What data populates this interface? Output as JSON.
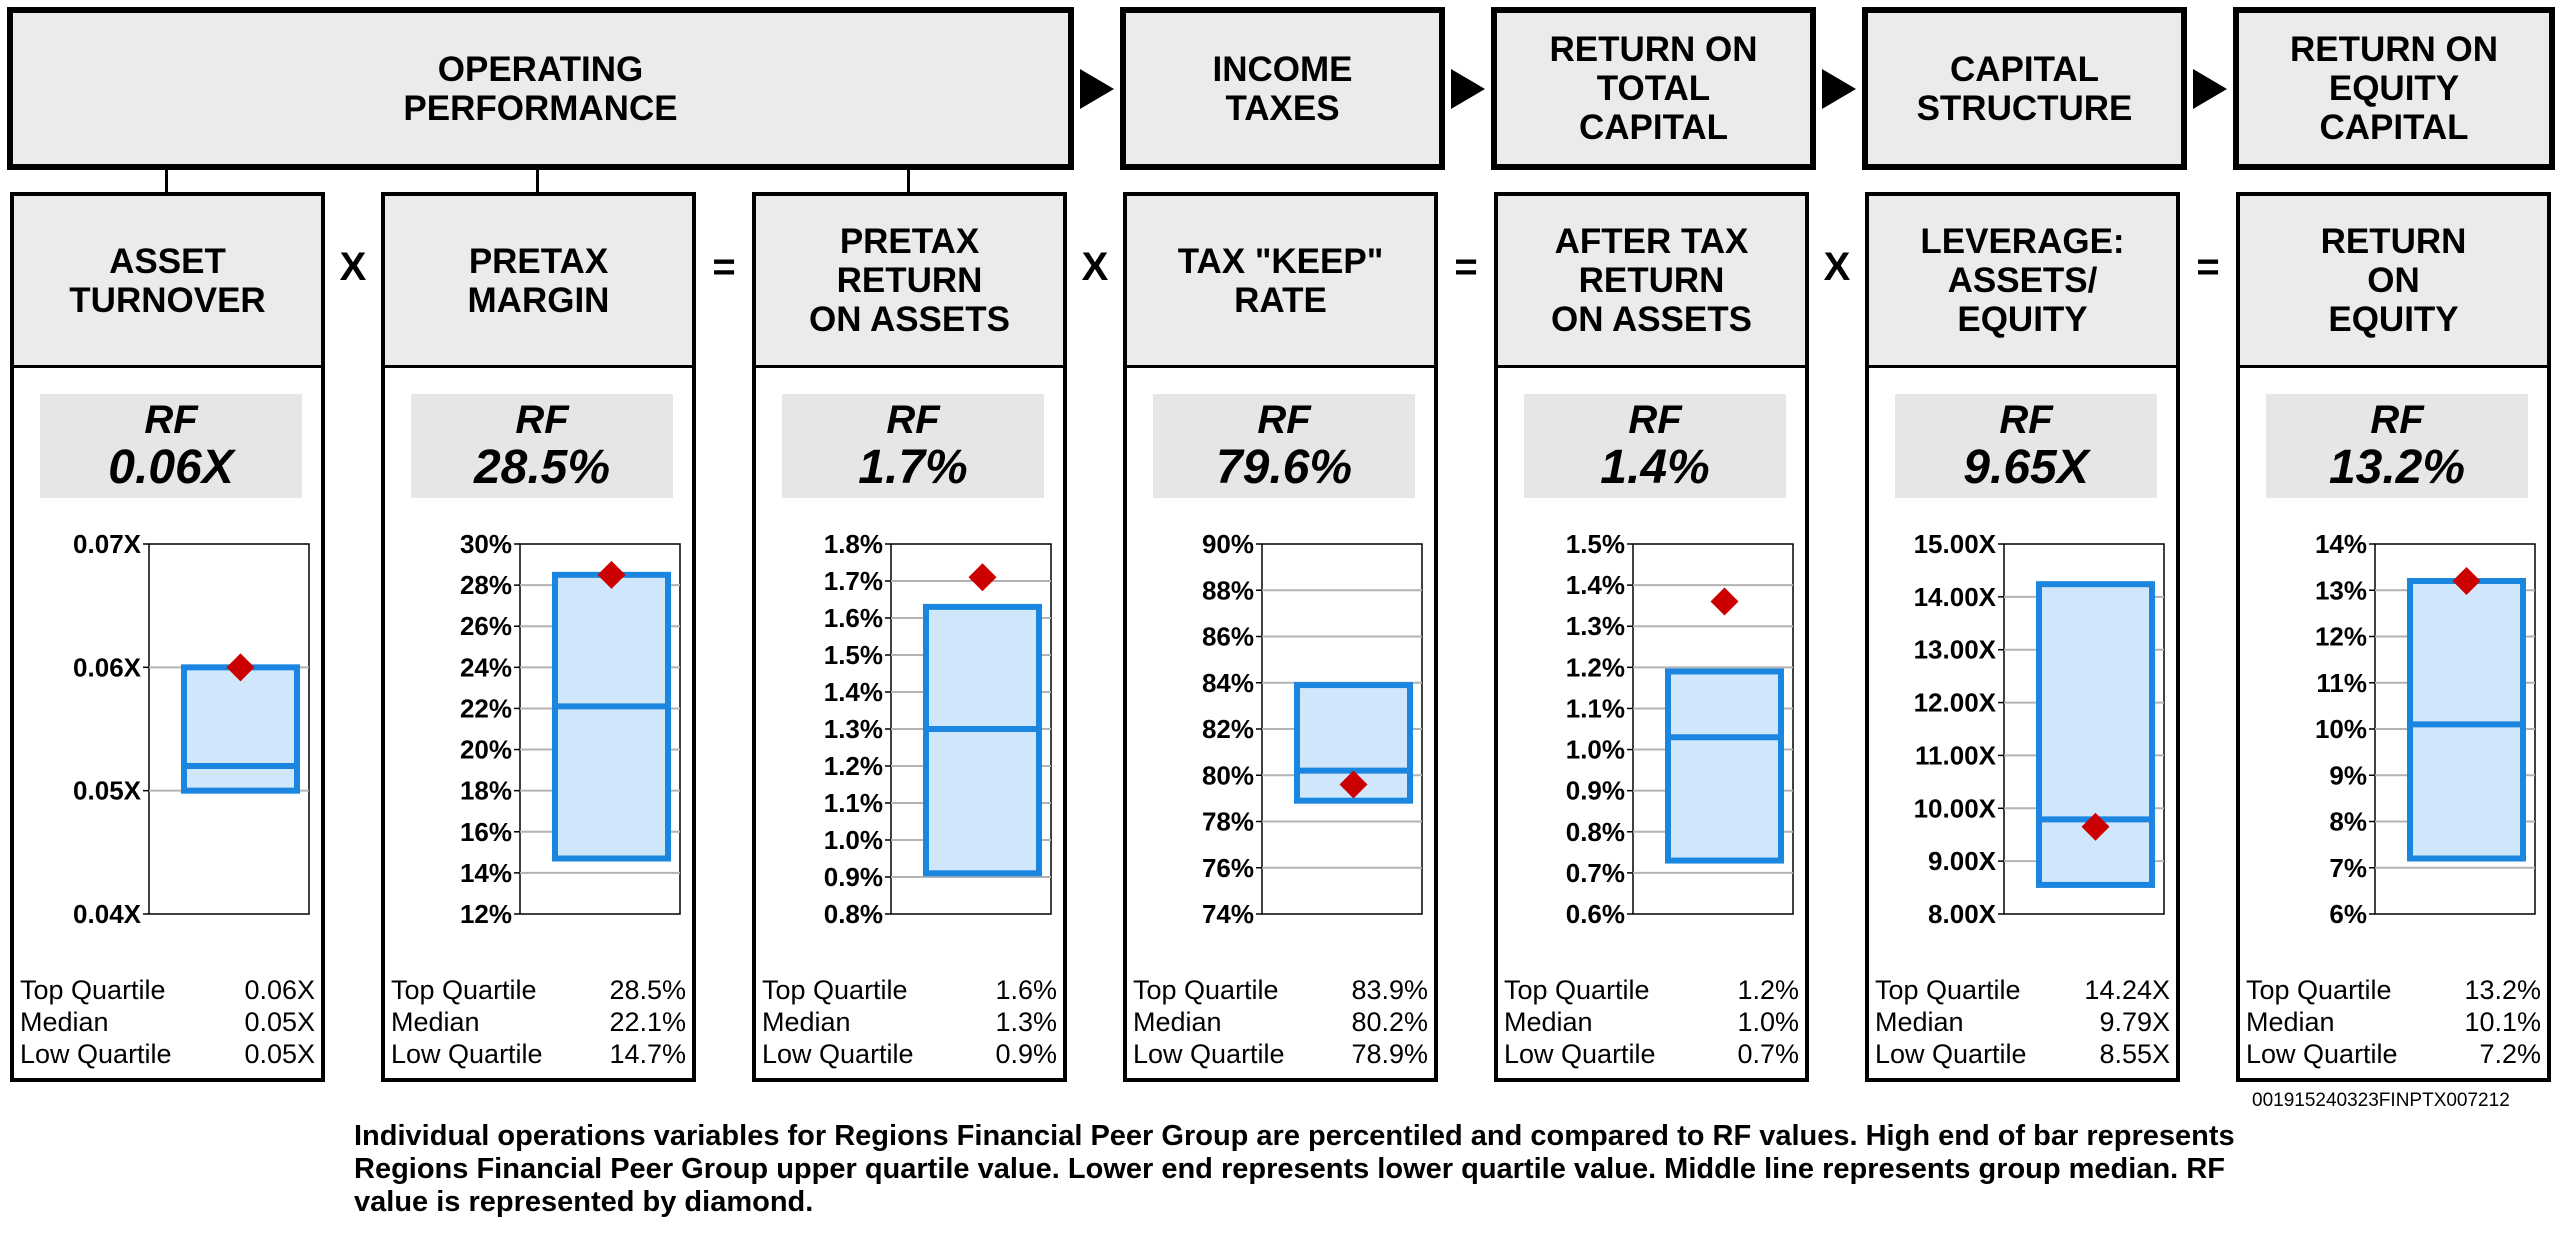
{
  "headers": [
    {
      "label": "OPERATING\nPERFORMANCE"
    },
    {
      "label": "INCOME\nTAXES"
    },
    {
      "label": "RETURN ON\nTOTAL\nCAPITAL"
    },
    {
      "label": "CAPITAL\nSTRUCTURE"
    },
    {
      "label": "RETURN ON\nEQUITY\nCAPITAL"
    }
  ],
  "operators": [
    "X",
    "=",
    "X",
    "=",
    "X",
    "="
  ],
  "rf_label": "RF",
  "stat_labels": {
    "top": "Top Quartile",
    "median": "Median",
    "low": "Low Quartile"
  },
  "colors": {
    "box_fill": "#cfe6fb",
    "box_stroke": "#1a86e0",
    "diamond": "#cc0000",
    "gridline": "#b3b3b3"
  },
  "panels": [
    {
      "title": "ASSET\nTURNOVER",
      "rf_display": "0.06X",
      "top_text": "0.06X",
      "median_text": "0.05X",
      "low_text": "0.05X"
    },
    {
      "title": "PRETAX\nMARGIN",
      "rf_display": "28.5%",
      "top_text": "28.5%",
      "median_text": "22.1%",
      "low_text": "14.7%"
    },
    {
      "title": "PRETAX\nRETURN\nON ASSETS",
      "rf_display": "1.7%",
      "top_text": "1.6%",
      "median_text": "1.3%",
      "low_text": "0.9%"
    },
    {
      "title": "TAX \"KEEP\"\nRATE",
      "rf_display": "79.6%",
      "top_text": "83.9%",
      "median_text": "80.2%",
      "low_text": "78.9%"
    },
    {
      "title": "AFTER TAX\nRETURN\nON ASSETS",
      "rf_display": "1.4%",
      "top_text": "1.2%",
      "median_text": "1.0%",
      "low_text": "0.7%"
    },
    {
      "title": "LEVERAGE:\nASSETS/\nEQUITY",
      "rf_display": "9.65X",
      "top_text": "14.24X",
      "median_text": "9.79X",
      "low_text": "8.55X"
    },
    {
      "title": "RETURN\nON\nEQUITY",
      "rf_display": "13.2%",
      "top_text": "13.2%",
      "median_text": "10.1%",
      "low_text": "7.2%"
    }
  ],
  "chart_data": [
    {
      "type": "box",
      "ylim": [
        0.04,
        0.07
      ],
      "ticks": [
        0.04,
        0.05,
        0.06,
        0.07
      ],
      "tick_labels": [
        "0.04X",
        "0.05X",
        "0.06X",
        "0.07X"
      ],
      "top_quartile": 0.06,
      "median": 0.052,
      "low_quartile": 0.05,
      "rf": 0.06
    },
    {
      "type": "box",
      "ylim": [
        12,
        30
      ],
      "ticks": [
        12,
        14,
        16,
        18,
        20,
        22,
        24,
        26,
        28,
        30
      ],
      "tick_labels": [
        "12%",
        "14%",
        "16%",
        "18%",
        "20%",
        "22%",
        "24%",
        "26%",
        "28%",
        "30%"
      ],
      "top_quartile": 28.5,
      "median": 22.1,
      "low_quartile": 14.7,
      "rf": 28.5
    },
    {
      "type": "box",
      "ylim": [
        0.8,
        1.8
      ],
      "ticks": [
        0.8,
        0.9,
        1.0,
        1.1,
        1.2,
        1.3,
        1.4,
        1.5,
        1.6,
        1.7,
        1.8
      ],
      "tick_labels": [
        "0.8%",
        "0.9%",
        "1.0%",
        "1.1%",
        "1.2%",
        "1.3%",
        "1.4%",
        "1.5%",
        "1.6%",
        "1.7%",
        "1.8%"
      ],
      "top_quartile": 1.63,
      "median": 1.3,
      "low_quartile": 0.91,
      "rf": 1.71
    },
    {
      "type": "box",
      "ylim": [
        74,
        90
      ],
      "ticks": [
        74,
        76,
        78,
        80,
        82,
        84,
        86,
        88,
        90
      ],
      "tick_labels": [
        "74%",
        "76%",
        "78%",
        "80%",
        "82%",
        "84%",
        "86%",
        "88%",
        "90%"
      ],
      "top_quartile": 83.9,
      "median": 80.2,
      "low_quartile": 78.9,
      "rf": 79.6
    },
    {
      "type": "box",
      "ylim": [
        0.6,
        1.5
      ],
      "ticks": [
        0.6,
        0.7,
        0.8,
        0.9,
        1.0,
        1.1,
        1.2,
        1.3,
        1.4,
        1.5
      ],
      "tick_labels": [
        "0.6%",
        "0.7%",
        "0.8%",
        "0.9%",
        "1.0%",
        "1.1%",
        "1.2%",
        "1.3%",
        "1.4%",
        "1.5%"
      ],
      "top_quartile": 1.19,
      "median": 1.03,
      "low_quartile": 0.73,
      "rf": 1.36
    },
    {
      "type": "box",
      "ylim": [
        8,
        15
      ],
      "ticks": [
        8,
        9,
        10,
        11,
        12,
        13,
        14,
        15
      ],
      "tick_labels": [
        "8.00X",
        "9.00X",
        "10.00X",
        "11.00X",
        "12.00X",
        "13.00X",
        "14.00X",
        "15.00X"
      ],
      "top_quartile": 14.24,
      "median": 9.79,
      "low_quartile": 8.55,
      "rf": 9.65
    },
    {
      "type": "box",
      "ylim": [
        6,
        14
      ],
      "ticks": [
        6,
        7,
        8,
        9,
        10,
        11,
        12,
        13,
        14
      ],
      "tick_labels": [
        "6%",
        "7%",
        "8%",
        "9%",
        "10%",
        "11%",
        "12%",
        "13%",
        "14%"
      ],
      "top_quartile": 13.2,
      "median": 10.1,
      "low_quartile": 7.2,
      "rf": 13.2
    }
  ],
  "footnote": "Individual operations variables for Regions Financial Peer Group are percentiled and compared to RF values. High end of bar represents Regions Financial Peer Group upper quartile value. Lower end represents lower quartile value. Middle line represents group median. RF value is represented by diamond.",
  "code": "001915240323FINPTX007212"
}
